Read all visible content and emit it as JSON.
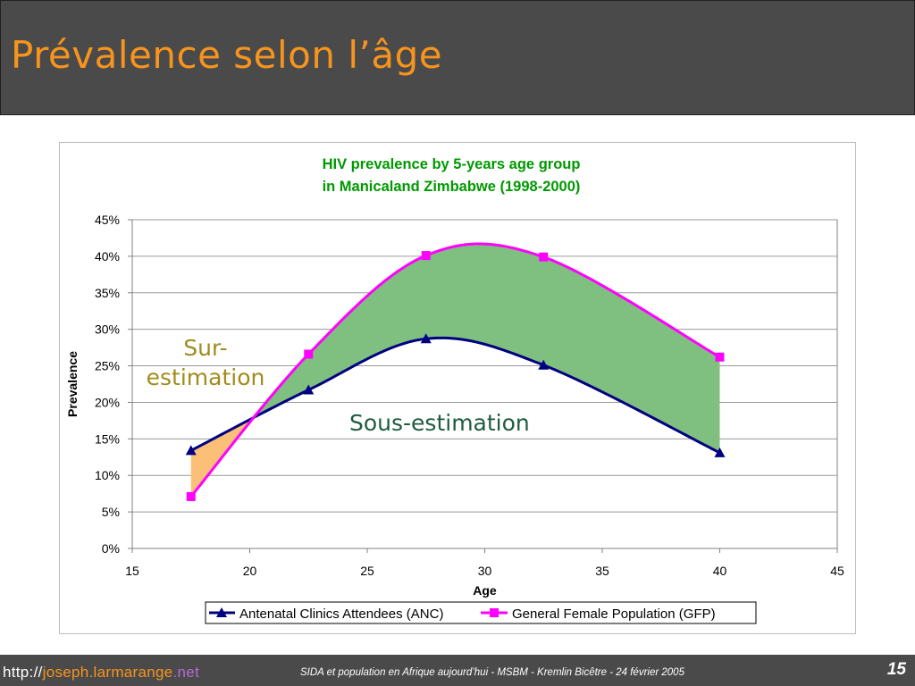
{
  "slide": {
    "title": "Prévalence selon l’âge",
    "page_number": "15",
    "footer_caption": "SIDA et population en Afrique aujourd’hui - MSBM - Kremlin Bicêtre - 24 février 2005",
    "footer_url": {
      "prefix": "http://",
      "main": "joseph.larmarange",
      "tld": ".net"
    }
  },
  "annotations": {
    "over_estimation": [
      "Sur-",
      "estimation"
    ],
    "under_estimation": "Sous-estimation",
    "over_color": "#a08c1e",
    "under_color": "#1f5c3f"
  },
  "chart_data": {
    "type": "line",
    "title": [
      "HIV prevalence by 5-years age group",
      "in Manicaland Zimbabwe (1998-2000)"
    ],
    "title_color": "#009900",
    "xlabel": "Age",
    "ylabel": "Prevalence",
    "xlim": [
      15,
      45
    ],
    "xticks": [
      15,
      20,
      25,
      30,
      35,
      40,
      45
    ],
    "ylim": [
      0,
      0.45
    ],
    "yticks": [
      0,
      0.05,
      0.1,
      0.15,
      0.2,
      0.25,
      0.3,
      0.35,
      0.4,
      0.45
    ],
    "ytick_labels": [
      "0%",
      "5%",
      "10%",
      "15%",
      "20%",
      "25%",
      "30%",
      "35%",
      "40%",
      "45%"
    ],
    "grid": true,
    "legend_position": "bottom",
    "series": [
      {
        "name": "Antenatal Clinics Attendees (ANC)",
        "color": "#000080",
        "marker": "triangle",
        "x": [
          17.5,
          22.5,
          27.5,
          32.5,
          40
        ],
        "y": [
          0.134,
          0.217,
          0.287,
          0.251,
          0.131
        ]
      },
      {
        "name": "General Female Population (GFP)",
        "color": "#ff00ff",
        "marker": "square",
        "x": [
          17.5,
          22.5,
          27.5,
          32.5,
          40
        ],
        "y": [
          0.071,
          0.266,
          0.401,
          0.399,
          0.262
        ]
      }
    ],
    "fills": {
      "over_color": "#fbbf78",
      "under_color": "#7fbf7f"
    }
  }
}
